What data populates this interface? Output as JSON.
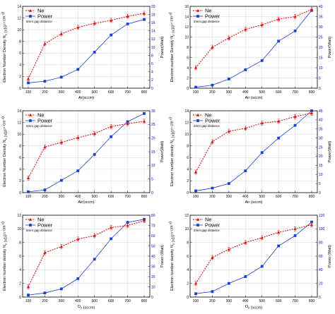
{
  "chart_data": [
    {
      "type": "line",
      "categories": [
        100,
        200,
        300,
        400,
        500,
        600,
        700,
        800
      ],
      "xticks": [
        "100",
        "200",
        "300",
        "400",
        "500",
        "600",
        "700",
        "800"
      ],
      "xlabel": "Ar(sccm)",
      "ylabel": "Electron Number Density N_e (x10^17 cm^-3)",
      "y2label": "Power(Watt)",
      "ylim": [
        0,
        14
      ],
      "yticks": [
        0,
        2,
        4,
        6,
        8,
        10,
        12,
        14
      ],
      "y2lim": [
        0,
        20
      ],
      "y2ticks": [
        0,
        2,
        4,
        6,
        8,
        10,
        12,
        14,
        16,
        18,
        20
      ],
      "legend": [
        "Ne",
        "Power"
      ],
      "annotation": "5mm gap distance",
      "series": [
        {
          "name": "Ne",
          "axis": "left",
          "values": [
            1.6,
            7.6,
            9.3,
            10.4,
            11.1,
            11.6,
            12.3,
            12.8
          ]
        },
        {
          "name": "Power",
          "axis": "right",
          "values": [
            1.3,
            1.7,
            2.7,
            4.6,
            8.8,
            13.0,
            15.7,
            16.8
          ]
        }
      ]
    },
    {
      "type": "line",
      "categories": [
        100,
        200,
        300,
        400,
        500,
        600,
        700,
        800
      ],
      "xticks": [
        "100",
        "200",
        "300",
        "400",
        "500",
        "600",
        "700",
        "800"
      ],
      "xlabel": "Air (sccm)",
      "ylabel": "Electron number Density N_e (x10^17 cm^-3)",
      "y2label": "Power(Watt)",
      "ylim": [
        0,
        16
      ],
      "yticks": [
        0,
        2,
        4,
        6,
        8,
        10,
        12,
        14,
        16
      ],
      "y2lim": [
        0,
        40
      ],
      "y2ticks": [
        0,
        5,
        10,
        15,
        20,
        25,
        30,
        35,
        40
      ],
      "legend": [
        "Ne",
        "Power"
      ],
      "annotation": "2mm gap distance",
      "series": [
        {
          "name": "Ne",
          "axis": "left",
          "values": [
            4.0,
            8.0,
            9.8,
            11.5,
            12.4,
            13.5,
            14.0,
            15.4
          ]
        },
        {
          "name": "Power",
          "axis": "right",
          "values": [
            0.5,
            1.5,
            4.5,
            9.0,
            13.5,
            23.0,
            28.0,
            38.0
          ]
        }
      ]
    },
    {
      "type": "line",
      "categories": [
        100,
        200,
        300,
        400,
        500,
        600,
        700,
        800
      ],
      "xticks": [
        "100",
        "200",
        "300",
        "400",
        "500",
        "600",
        "700",
        "800"
      ],
      "xlabel": "Air(sccm)",
      "ylabel": "Electron Number Density N_e (x10^17 cm^-3)",
      "y2label": "Power(Watt)",
      "ylim": [
        0,
        14
      ],
      "yticks": [
        0,
        2,
        4,
        6,
        8,
        10,
        12,
        14
      ],
      "y2lim": [
        0,
        30
      ],
      "y2ticks": [
        0,
        5,
        10,
        15,
        20,
        25,
        30
      ],
      "legend": [
        "Ne",
        "Power"
      ],
      "annotation": "5mm gap distance",
      "series": [
        {
          "name": "Ne",
          "axis": "left",
          "values": [
            2.5,
            7.8,
            8.6,
            9.4,
            10.1,
            11.3,
            11.8,
            12.2
          ]
        },
        {
          "name": "Power",
          "axis": "right",
          "values": [
            0.3,
            1.0,
            4.5,
            8.0,
            14.0,
            20.5,
            26.0,
            29.0
          ]
        }
      ]
    },
    {
      "type": "line",
      "categories": [
        100,
        200,
        300,
        400,
        500,
        600,
        700,
        800
      ],
      "xticks": [
        "100",
        "200",
        "300",
        "400",
        "500",
        "600",
        "700",
        "800"
      ],
      "xlabel": "Air (sccm)",
      "ylabel": "Electron number density N_e (x10^17 cm^-3)",
      "y2label": "Power(Watt)",
      "ylim": [
        0,
        14
      ],
      "yticks": [
        0,
        2,
        4,
        6,
        8,
        10,
        12,
        14
      ],
      "y2lim": [
        0,
        45
      ],
      "y2ticks": [
        0,
        5,
        10,
        15,
        20,
        25,
        30,
        35,
        40,
        45
      ],
      "legend": [
        "Ne",
        "Power"
      ],
      "annotation": "2mm gap distance",
      "series": [
        {
          "name": "Ne",
          "axis": "left",
          "values": [
            3.5,
            8.7,
            10.5,
            11.0,
            11.9,
            12.2,
            13.0,
            13.6
          ]
        },
        {
          "name": "Power",
          "axis": "right",
          "values": [
            1.0,
            2.5,
            5.0,
            12.0,
            22.0,
            30.0,
            37.0,
            45.0
          ]
        }
      ]
    },
    {
      "type": "line",
      "categories": [
        100,
        200,
        300,
        400,
        500,
        600,
        700,
        800
      ],
      "xticks": [
        "100",
        "200",
        "300",
        "400",
        "500",
        "600",
        "700",
        "800"
      ],
      "xlabel": "O_2 (sccm)",
      "ylabel": "Electron number density N_e (x10^17 cm^-3)",
      "y2label": "Power (Watt)",
      "ylim": [
        0,
        12
      ],
      "yticks": [
        0,
        2,
        4,
        6,
        8,
        10,
        12
      ],
      "y2lim": [
        0,
        80
      ],
      "y2ticks": [
        0,
        10,
        20,
        30,
        40,
        50,
        60,
        70,
        80
      ],
      "legend": [
        "Ne",
        "Power"
      ],
      "annotation": "5mm gap distance",
      "series": [
        {
          "name": "Ne",
          "axis": "left",
          "values": [
            1.5,
            6.5,
            7.4,
            8.5,
            9.0,
            10.2,
            10.5,
            11.2
          ]
        },
        {
          "name": "Power",
          "axis": "right",
          "values": [
            2.0,
            4.0,
            8.0,
            18.0,
            37.0,
            57.0,
            73.0,
            76.0
          ]
        }
      ]
    },
    {
      "type": "line",
      "categories": [
        100,
        200,
        300,
        400,
        500,
        600,
        700,
        800
      ],
      "xticks": [
        "100",
        "200",
        "300",
        "400",
        "500",
        "600",
        "700",
        "800"
      ],
      "xlabel": "O_2 (sccm)",
      "ylabel": "Electron number density N_e (x10^17 cm^-3)",
      "y2label": "Power (Watt)",
      "ylim": [
        0,
        12
      ],
      "yticks": [
        0,
        2,
        4,
        6,
        8,
        10,
        12
      ],
      "y2lim": [
        0,
        120
      ],
      "y2ticks": [
        0,
        20,
        40,
        60,
        80,
        100,
        120
      ],
      "legend": [
        "Ne",
        "Power"
      ],
      "annotation": "2mm gap distance",
      "series": [
        {
          "name": "Ne",
          "axis": "left",
          "values": [
            2.0,
            5.8,
            7.0,
            8.0,
            8.7,
            9.5,
            10.0,
            10.6
          ]
        },
        {
          "name": "Power",
          "axis": "right",
          "values": [
            5.0,
            8.0,
            20.0,
            30.0,
            45.0,
            75.0,
            90.0,
            110.0
          ]
        }
      ]
    }
  ]
}
